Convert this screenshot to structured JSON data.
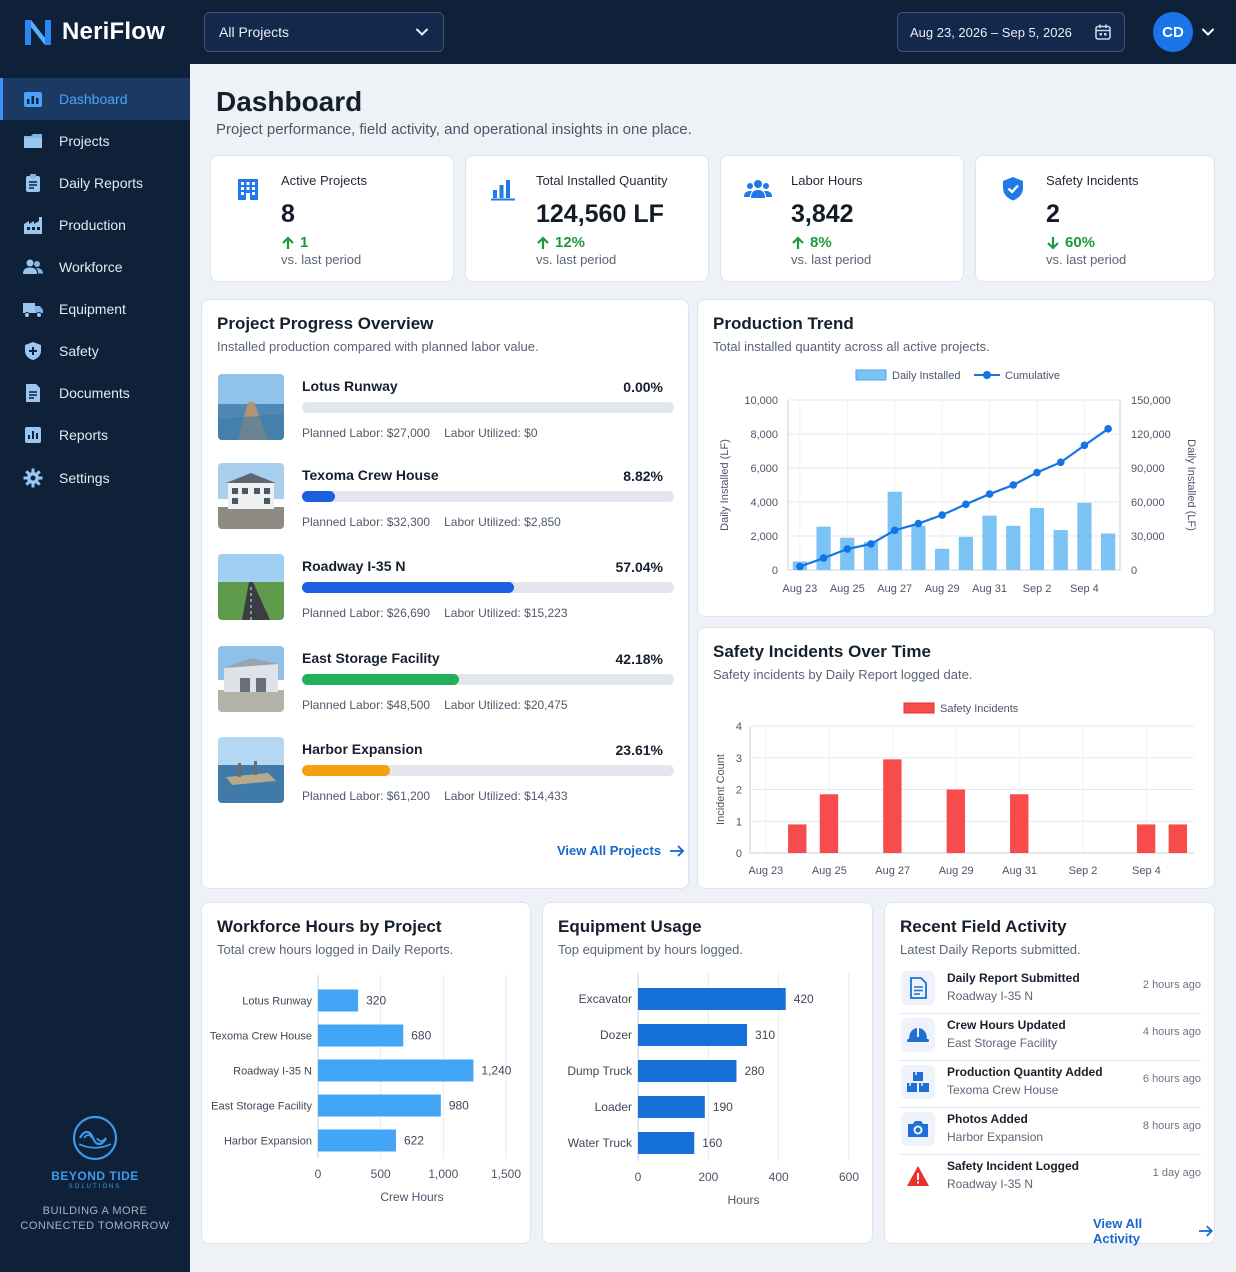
{
  "app": {
    "name": "NeriFlow"
  },
  "topbar": {
    "project_filter": "All Projects",
    "date_range": "Aug 23, 2026 – Sep 5, 2026",
    "user_initials": "CD"
  },
  "sidebar": {
    "items": [
      {
        "label": "Dashboard",
        "icon": "dashboard-icon",
        "active": true
      },
      {
        "label": "Projects",
        "icon": "folder-icon"
      },
      {
        "label": "Daily Reports",
        "icon": "clipboard-icon"
      },
      {
        "label": "Production",
        "icon": "factory-icon"
      },
      {
        "label": "Workforce",
        "icon": "people-icon"
      },
      {
        "label": "Equipment",
        "icon": "truck-icon"
      },
      {
        "label": "Safety",
        "icon": "shield-icon"
      },
      {
        "label": "Documents",
        "icon": "document-icon"
      },
      {
        "label": "Reports",
        "icon": "report-icon"
      },
      {
        "label": "Settings",
        "icon": "gear-icon"
      }
    ],
    "brand": {
      "name": "BEYOND TIDE",
      "sub": "SOLUTIONS",
      "tagline_1": "BUILDING A MORE",
      "tagline_2": "CONNECTED TOMORROW"
    }
  },
  "header": {
    "title": "Dashboard",
    "subtitle": "Project performance, field activity, and operational insights in one place."
  },
  "kpis": [
    {
      "label": "Active Projects",
      "value": "8",
      "change": "1",
      "direction": "up",
      "period": "vs. last period",
      "icon": "building-icon"
    },
    {
      "label": "Total Installed Quantity",
      "value": "124,560 LF",
      "change": "12%",
      "direction": "up",
      "period": "vs. last period",
      "icon": "bar-chart-icon"
    },
    {
      "label": "Labor Hours",
      "value": "3,842",
      "change": "8%",
      "direction": "up",
      "period": "vs. last period",
      "icon": "people-icon"
    },
    {
      "label": "Safety Incidents",
      "value": "2",
      "change": "60%",
      "direction": "down",
      "period": "vs. last period",
      "icon": "shield-check-icon"
    }
  ],
  "project_progress": {
    "title": "Project Progress Overview",
    "subtitle": "Installed production compared with planned labor value.",
    "view_all": "View All Projects",
    "projects": [
      {
        "name": "Lotus Runway",
        "percent_label": "0.00%",
        "progress": 0.0,
        "planned": "Planned Labor: $27,000",
        "utilized": "Labor Utilized: $0",
        "color": "#1b5fe0"
      },
      {
        "name": "Texoma Crew House",
        "percent_label": "8.82%",
        "progress": 0.0882,
        "planned": "Planned Labor: $32,300",
        "utilized": "Labor Utilized: $2,850",
        "color": "#1b5fe0"
      },
      {
        "name": "Roadway I-35 N",
        "percent_label": "57.04%",
        "progress": 0.5704,
        "planned": "Planned Labor: $26,690",
        "utilized": "Labor Utilized: $15,223",
        "color": "#1b5fe0"
      },
      {
        "name": "East Storage Facility",
        "percent_label": "42.18%",
        "progress": 0.4218,
        "planned": "Planned Labor: $48,500",
        "utilized": "Labor Utilized: $20,475",
        "color": "#22b05a"
      },
      {
        "name": "Harbor Expansion",
        "percent_label": "23.61%",
        "progress": 0.2361,
        "planned": "Planned Labor: $61,200",
        "utilized": "Labor Utilized: $14,433",
        "color": "#f5a00e"
      }
    ]
  },
  "production_trend": {
    "title": "Production Trend",
    "subtitle": "Total installed quantity across all active projects."
  },
  "safety_chart": {
    "title": "Safety Incidents Over Time",
    "subtitle": "Safety incidents by Daily Report logged date."
  },
  "workforce": {
    "title": "Workforce Hours by Project",
    "subtitle": "Total crew hours logged in Daily Reports."
  },
  "equipment": {
    "title": "Equipment Usage",
    "subtitle": "Top equipment by hours logged."
  },
  "activity": {
    "title": "Recent Field Activity",
    "subtitle": "Latest Daily Reports submitted.",
    "view_all": "View All Activity",
    "items": [
      {
        "title": "Daily Report Submitted",
        "project": "Roadway I-35 N",
        "time": "2 hours ago",
        "icon": "document-icon"
      },
      {
        "title": "Crew Hours Updated",
        "project": "East Storage Facility",
        "time": "4 hours ago",
        "icon": "hard-hat-icon"
      },
      {
        "title": "Production Quantity Added",
        "project": "Texoma Crew House",
        "time": "6 hours ago",
        "icon": "boxes-icon"
      },
      {
        "title": "Photos Added",
        "project": "Harbor Expansion",
        "time": "8 hours ago",
        "icon": "camera-icon"
      },
      {
        "title": "Safety Incident Logged",
        "project": "Roadway I-35 N",
        "time": "1 day ago",
        "icon": "warning-icon"
      }
    ]
  },
  "chart_data": [
    {
      "type": "bar+line",
      "title": "Production Trend",
      "x": [
        "Aug 23",
        "Aug 24",
        "Aug 25",
        "Aug 26",
        "Aug 27",
        "Aug 28",
        "Aug 29",
        "Aug 30",
        "Aug 31",
        "Sep 1",
        "Sep 2",
        "Sep 3",
        "Sep 4",
        "Sep 5"
      ],
      "xticks": [
        "Aug 23",
        "Aug 25",
        "Aug 27",
        "Aug 29",
        "Aug 31",
        "Sep 2",
        "Sep 4"
      ],
      "series": [
        {
          "name": "Daily Installed",
          "type": "bar",
          "axis": "left",
          "color": "#7cc3f5",
          "values": [
            500,
            2550,
            1900,
            1650,
            4600,
            2600,
            1250,
            1950,
            3200,
            2600,
            3650,
            2350,
            3950,
            2150
          ]
        },
        {
          "name": "Cumulative",
          "type": "line",
          "axis": "right",
          "color": "#1473e6",
          "values": [
            3000,
            10500,
            18500,
            23000,
            35000,
            41000,
            48500,
            58000,
            67000,
            75000,
            86000,
            95000,
            110000,
            124560
          ]
        }
      ],
      "ylabel": "Daily Installed (LF)",
      "y2label": "Daily Installed (LF)",
      "ylim": [
        0,
        10000
      ],
      "y2lim": [
        0,
        150000
      ],
      "yticks": [
        0,
        2000,
        4000,
        6000,
        8000,
        10000
      ],
      "y2ticks": [
        0,
        30000,
        60000,
        90000,
        120000,
        150000
      ],
      "ytick_labels": [
        "0",
        "2,000",
        "4,000",
        "6,000",
        "8,000",
        "10,000"
      ],
      "y2tick_labels": [
        "0",
        "30,000",
        "60,000",
        "90,000",
        "120,000",
        "150,000"
      ],
      "grid": true,
      "legend": "top-center"
    },
    {
      "type": "bar",
      "title": "Safety Incidents Over Time",
      "x": [
        "Aug 23",
        "Aug 24",
        "Aug 25",
        "Aug 26",
        "Aug 27",
        "Aug 28",
        "Aug 29",
        "Aug 30",
        "Aug 31",
        "Sep 1",
        "Sep 2",
        "Sep 3",
        "Sep 4",
        "Sep 5"
      ],
      "xticks": [
        "Aug 23",
        "Aug 25",
        "Aug 27",
        "Aug 29",
        "Aug 31",
        "Sep 2",
        "Sep 4"
      ],
      "series": [
        {
          "name": "Safety Incidents",
          "color": "#f84c4c",
          "values": [
            0,
            0.9,
            1.85,
            0,
            2.95,
            0,
            2.0,
            0,
            1.85,
            0,
            0,
            0,
            0.9,
            0.9
          ]
        }
      ],
      "ylabel": "Incident Count",
      "ylim": [
        0,
        4
      ],
      "yticks": [
        0,
        1,
        2,
        3,
        4
      ],
      "grid": true,
      "legend": "top-center"
    },
    {
      "type": "bar",
      "orientation": "horizontal",
      "title": "Workforce Hours by Project",
      "categories": [
        "Lotus Runway",
        "Texoma Crew House",
        "Roadway I-35 N",
        "East Storage Facility",
        "Harbor Expansion"
      ],
      "values": [
        320,
        680,
        1240,
        980,
        622
      ],
      "value_labels": [
        "320",
        "680",
        "1,240",
        "980",
        "622"
      ],
      "color": "#42a5f5",
      "xlabel": "Crew Hours",
      "xlim": [
        0,
        1500
      ],
      "xticks": [
        0,
        500,
        1000,
        1500
      ],
      "xtick_labels": [
        "0",
        "500",
        "1,000",
        "1,500"
      ],
      "grid": true
    },
    {
      "type": "bar",
      "orientation": "horizontal",
      "title": "Equipment Usage",
      "categories": [
        "Excavator",
        "Dozer",
        "Dump Truck",
        "Loader",
        "Water Truck"
      ],
      "values": [
        420,
        310,
        280,
        190,
        160
      ],
      "color": "#1570d8",
      "xlabel": "Hours",
      "xlim": [
        0,
        600
      ],
      "xticks": [
        0,
        200,
        400,
        600
      ],
      "grid": true
    }
  ]
}
